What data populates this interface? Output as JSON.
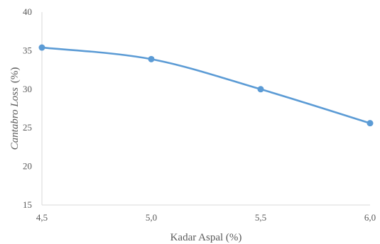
{
  "chart_data": {
    "type": "line",
    "title": "",
    "x": [
      "4,5",
      "5,0",
      "5,5",
      "6,0"
    ],
    "xlabel": "Kadar Aspal (%)",
    "ylabel_italic": "Cantabro Loss",
    "ylabel_unit": "(%)",
    "ylim": [
      15,
      40
    ],
    "yticks": [
      15,
      20,
      25,
      30,
      35,
      40
    ],
    "ytick_labels": [
      "15",
      "20",
      "25",
      "30",
      "35",
      "40"
    ],
    "grid": false,
    "smooth": true,
    "series": [
      {
        "values": [
          35.4,
          33.9,
          30.0,
          25.6
        ],
        "color": "#5B9BD5"
      }
    ]
  }
}
